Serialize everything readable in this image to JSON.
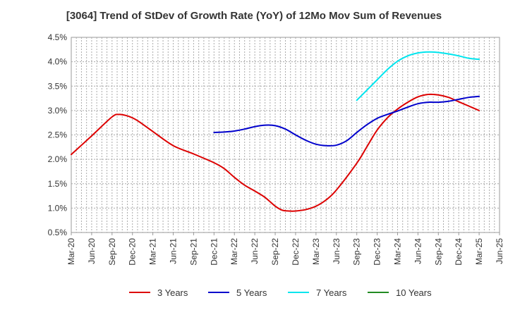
{
  "chart_data": {
    "type": "line",
    "title": "[3064]  Trend of StDev of Growth Rate (YoY) of 12Mo Mov Sum of Revenues",
    "xlabel": "",
    "ylabel": "",
    "ylim": [
      0.005,
      0.045
    ],
    "y_ticks": [
      0.005,
      0.01,
      0.015,
      0.02,
      0.025,
      0.03,
      0.035,
      0.04,
      0.045
    ],
    "y_tick_labels": [
      "0.5%",
      "1.0%",
      "1.5%",
      "2.0%",
      "2.5%",
      "3.0%",
      "3.5%",
      "4.0%",
      "4.5%"
    ],
    "x_tick_labels": [
      "Mar-20",
      "Jun-20",
      "Sep-20",
      "Dec-20",
      "Mar-21",
      "Jun-21",
      "Sep-21",
      "Dec-21",
      "Mar-22",
      "Jun-22",
      "Sep-22",
      "Dec-22",
      "Mar-23",
      "Jun-23",
      "Sep-23",
      "Dec-23",
      "Mar-24",
      "Jun-24",
      "Sep-24",
      "Dec-24",
      "Mar-25",
      "Jun-25"
    ],
    "x_unit": "quarter index (0 = Mar-20, 21 = Jun-25)",
    "grid": true,
    "legend_position": "bottom",
    "series": [
      {
        "name": "3 Years",
        "color": "#dd0000",
        "x": [
          0,
          1,
          2,
          2.33,
          2.67,
          3,
          3.33,
          4,
          5,
          6,
          7,
          7.5,
          8,
          8.5,
          9,
          9.5,
          10,
          10.33,
          10.67,
          11,
          11.5,
          12,
          12.5,
          13,
          14,
          14.5,
          15,
          15.5,
          16,
          16.5,
          17,
          17.5,
          18,
          18.5,
          19,
          19.5,
          20
        ],
        "values": [
          0.021,
          0.0248,
          0.0287,
          0.0292,
          0.029,
          0.0285,
          0.0277,
          0.0257,
          0.0228,
          0.0211,
          0.0193,
          0.0181,
          0.0163,
          0.0147,
          0.0135,
          0.0122,
          0.0104,
          0.0096,
          0.0094,
          0.0094,
          0.0097,
          0.0104,
          0.0117,
          0.0137,
          0.0192,
          0.0226,
          0.026,
          0.0285,
          0.0303,
          0.0317,
          0.0328,
          0.0333,
          0.0332,
          0.0327,
          0.0318,
          0.0309,
          0.03
        ]
      },
      {
        "name": "5 Years",
        "color": "#0000cc",
        "x": [
          7,
          7.5,
          8,
          8.5,
          9,
          9.5,
          10,
          10.5,
          11,
          11.5,
          12,
          12.5,
          13,
          13.5,
          14,
          14.5,
          15,
          15.5,
          16,
          16.5,
          17,
          17.5,
          18,
          18.5,
          19,
          19.5,
          20
        ],
        "values": [
          0.0255,
          0.0256,
          0.0258,
          0.0262,
          0.0267,
          0.027,
          0.0269,
          0.0262,
          0.025,
          0.0239,
          0.0231,
          0.0228,
          0.0229,
          0.0238,
          0.0255,
          0.0271,
          0.0284,
          0.0292,
          0.0299,
          0.0307,
          0.0314,
          0.0317,
          0.0317,
          0.0319,
          0.0323,
          0.0327,
          0.0329
        ]
      },
      {
        "name": "7 Years",
        "color": "#00e5ee",
        "x": [
          14,
          14.5,
          15,
          15.5,
          16,
          16.5,
          17,
          17.5,
          18,
          18.5,
          19,
          19.5,
          20
        ],
        "values": [
          0.0321,
          0.0342,
          0.0363,
          0.0384,
          0.0401,
          0.0412,
          0.0418,
          0.042,
          0.0419,
          0.0416,
          0.0412,
          0.0407,
          0.0405
        ]
      },
      {
        "name": "10 Years",
        "color": "#228b22",
        "x": [],
        "values": []
      }
    ]
  }
}
